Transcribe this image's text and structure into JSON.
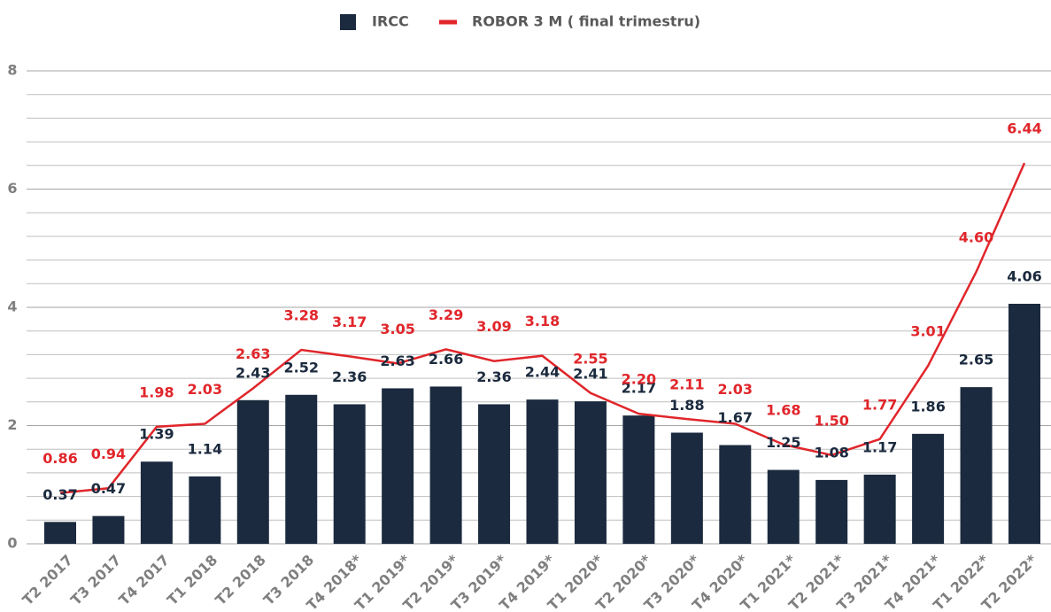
{
  "chart_data": {
    "type": "bar_line",
    "categories": [
      "T2 2017",
      "T3 2017",
      "T4 2017",
      "T1 2018",
      "T2 2018",
      "T3 2018",
      "T4 2018*",
      "T1 2019*",
      "T2 2019*",
      "T3 2019*",
      "T4 2019*",
      "T1 2020*",
      "T2 2020*",
      "T3 2020*",
      "T4 2020*",
      "T1 2021*",
      "T2 2021*",
      "T3 2021*",
      "T4 2021*",
      "T1 2022*",
      "T2 2022*"
    ],
    "series": [
      {
        "name": "IRCC",
        "type": "bar",
        "color": "#1b2a3e",
        "values": [
          0.37,
          0.47,
          1.39,
          1.14,
          2.43,
          2.52,
          2.36,
          2.63,
          2.66,
          2.36,
          2.44,
          2.41,
          2.17,
          1.88,
          1.67,
          1.25,
          1.08,
          1.17,
          1.86,
          2.65,
          4.06
        ]
      },
      {
        "name": "ROBOR 3 M ( final trimestru)",
        "type": "line",
        "color": "#e0262b",
        "values": [
          0.86,
          0.94,
          1.98,
          2.03,
          2.63,
          3.28,
          3.17,
          3.05,
          3.29,
          3.09,
          3.18,
          2.55,
          2.2,
          2.11,
          2.03,
          1.68,
          1.5,
          1.77,
          3.01,
          4.6,
          6.44
        ],
        "value_labels": [
          "0.86",
          "0.94",
          "1.98",
          "2.03",
          "2.63",
          "3.28",
          "3.17",
          "3.05",
          "3.29",
          "3.09",
          "3.18",
          "2.55",
          "2.20",
          "2.11",
          "2.03",
          "1.68",
          "1.50",
          "1.77",
          "3.01",
          "4.60",
          "6.44"
        ]
      }
    ],
    "ylim": [
      0,
      8
    ],
    "yticks": [
      0,
      2,
      4,
      6,
      8
    ],
    "minor_yticks": [
      0.4,
      0.8,
      1.2,
      1.6,
      2.4,
      2.8,
      3.2,
      3.6,
      4.4,
      4.8,
      5.2,
      5.6,
      6.4,
      6.8,
      7.2,
      7.6
    ],
    "grid": true,
    "legend": "top"
  }
}
